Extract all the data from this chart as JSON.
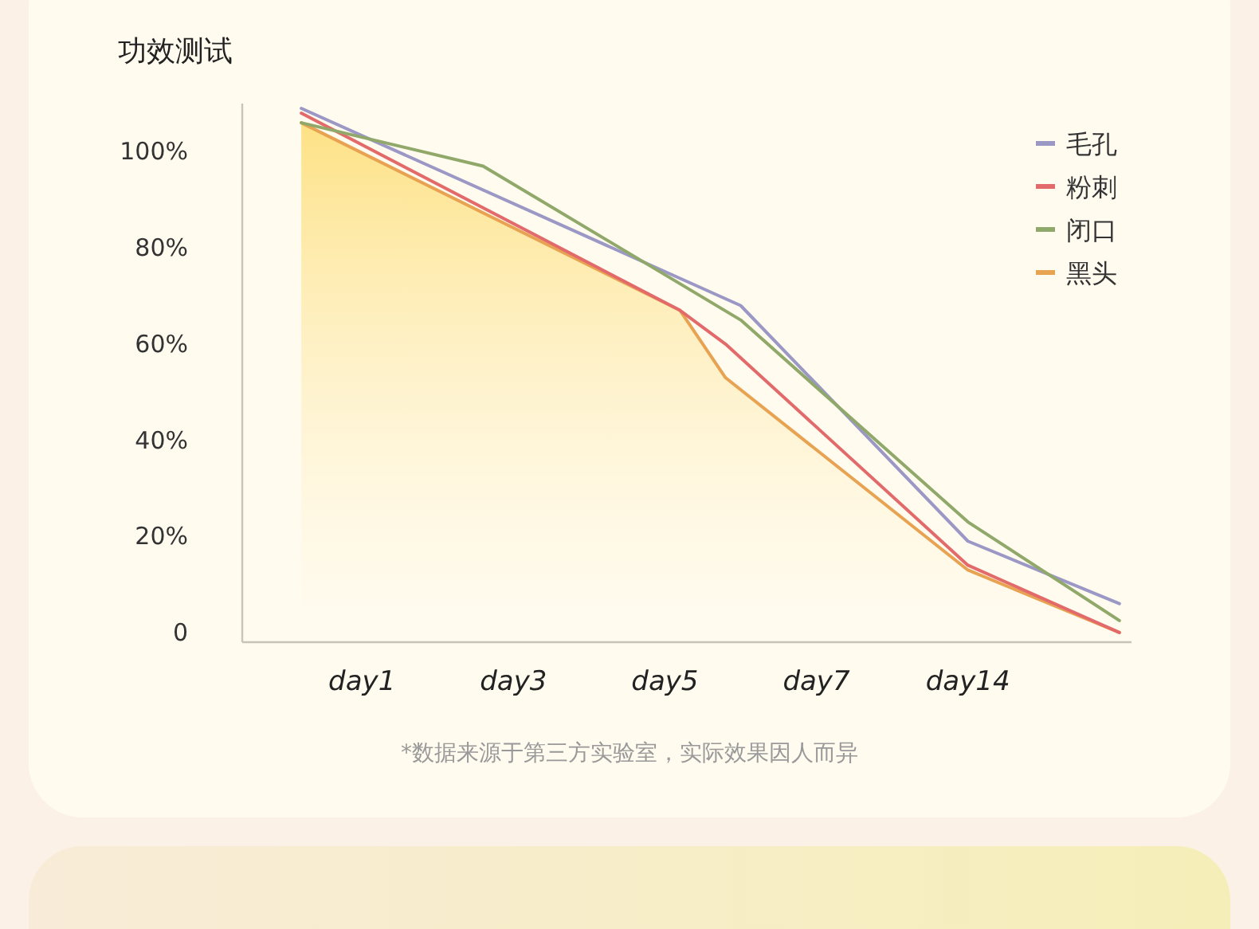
{
  "chart_data": {
    "type": "line",
    "title": "功效测试",
    "annotations": [
      "*数据来源于第三方实验室，实际效果因人而异"
    ],
    "categories": [
      null,
      null,
      null,
      null,
      "day1",
      null,
      null,
      null,
      null,
      null,
      null,
      null,
      null,
      null,
      "day3",
      null,
      null,
      null,
      null,
      null,
      null,
      null,
      null,
      null,
      "day5",
      null,
      null,
      null,
      null,
      null,
      null,
      null,
      null,
      null,
      "day7",
      null,
      null,
      null,
      null,
      null,
      null,
      null,
      null,
      null,
      "day14",
      null,
      null,
      null,
      null,
      null,
      null,
      null,
      null,
      null,
      null
    ],
    "ylim": [
      -2,
      110
    ],
    "yticks": [
      {
        "value": 0,
        "label": "0"
      },
      {
        "value": 20,
        "label": "20%"
      },
      {
        "value": 40,
        "label": "40%"
      },
      {
        "value": 60,
        "label": "60%"
      },
      {
        "value": 80,
        "label": "80%"
      },
      {
        "value": 100,
        "label": "100%"
      }
    ],
    "legend": "top right",
    "series": [
      {
        "name": "毛孔",
        "color": "#9c98c6",
        "values": [
          109,
          null,
          null,
          null,
          null,
          null,
          null,
          null,
          null,
          null,
          null,
          null,
          null,
          null,
          null,
          null,
          null,
          null,
          null,
          null,
          null,
          null,
          null,
          null,
          null,
          null,
          null,
          null,
          null,
          68,
          null,
          null,
          null,
          null,
          null,
          null,
          null,
          null,
          null,
          null,
          null,
          null,
          null,
          null,
          19,
          null,
          null,
          null,
          null,
          null,
          null,
          null,
          null,
          null,
          6
        ]
      },
      {
        "name": "粉刺",
        "color": "#e36a6a",
        "values": [
          108,
          null,
          null,
          null,
          null,
          null,
          null,
          null,
          null,
          null,
          null,
          null,
          null,
          null,
          null,
          null,
          null,
          null,
          null,
          null,
          null,
          null,
          null,
          null,
          null,
          67,
          null,
          null,
          60,
          null,
          null,
          null,
          null,
          null,
          null,
          null,
          null,
          null,
          null,
          null,
          null,
          null,
          null,
          null,
          14,
          null,
          null,
          null,
          null,
          null,
          null,
          null,
          null,
          null,
          0
        ]
      },
      {
        "name": "闭口",
        "color": "#90a96a",
        "values": [
          106,
          null,
          null,
          null,
          null,
          null,
          null,
          null,
          null,
          null,
          null,
          null,
          97,
          null,
          null,
          null,
          null,
          null,
          null,
          null,
          null,
          null,
          null,
          null,
          null,
          null,
          null,
          null,
          null,
          65,
          null,
          null,
          null,
          null,
          null,
          null,
          null,
          null,
          null,
          null,
          null,
          null,
          null,
          null,
          23,
          null,
          null,
          null,
          null,
          null,
          null,
          null,
          null,
          null,
          2.5
        ]
      },
      {
        "name": "黑头",
        "color": "#e8a352",
        "type": "area",
        "values": [
          106,
          null,
          null,
          null,
          null,
          null,
          null,
          null,
          null,
          null,
          null,
          null,
          null,
          null,
          null,
          null,
          null,
          null,
          null,
          null,
          null,
          null,
          null,
          null,
          null,
          67,
          null,
          null,
          53,
          null,
          null,
          null,
          null,
          null,
          null,
          null,
          null,
          null,
          null,
          null,
          null,
          null,
          null,
          null,
          13,
          null,
          null,
          null,
          null,
          null,
          null,
          null,
          null,
          null,
          0
        ]
      }
    ]
  }
}
